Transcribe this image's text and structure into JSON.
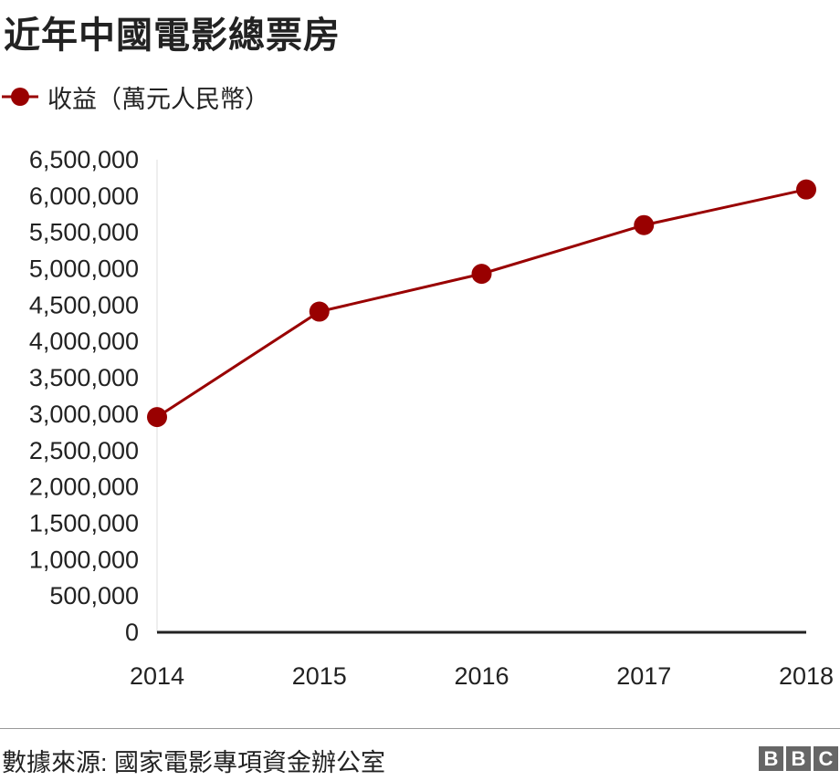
{
  "title": "近年中國電影總票房",
  "legend": {
    "label": "收益（萬元人民幣）"
  },
  "source": "數據來源: 國家電影專項資金辦公室",
  "logo": {
    "letters": [
      "B",
      "B",
      "C"
    ]
  },
  "colors": {
    "series": "#990000",
    "axis": "#222222",
    "text": "#222222",
    "logo": "#666666"
  },
  "chart_data": {
    "type": "line",
    "x": [
      "2014",
      "2015",
      "2016",
      "2017",
      "2018"
    ],
    "series": [
      {
        "name": "收益（萬元人民幣）",
        "values": [
          2960000,
          4410000,
          4930000,
          5600000,
          6090000
        ]
      }
    ],
    "ylim": [
      0,
      6500000
    ],
    "yticks": [
      "0",
      "500,000",
      "1,000,000",
      "1,500,000",
      "2,000,000",
      "2,500,000",
      "3,000,000",
      "3,500,000",
      "4,000,000",
      "4,500,000",
      "5,000,000",
      "5,500,000",
      "6,000,000",
      "6,500,000"
    ],
    "ytick_values": [
      0,
      500000,
      1000000,
      1500000,
      2000000,
      2500000,
      3000000,
      3500000,
      4000000,
      4500000,
      5000000,
      5500000,
      6000000,
      6500000
    ],
    "grid": false,
    "legend_position": "top-left"
  }
}
